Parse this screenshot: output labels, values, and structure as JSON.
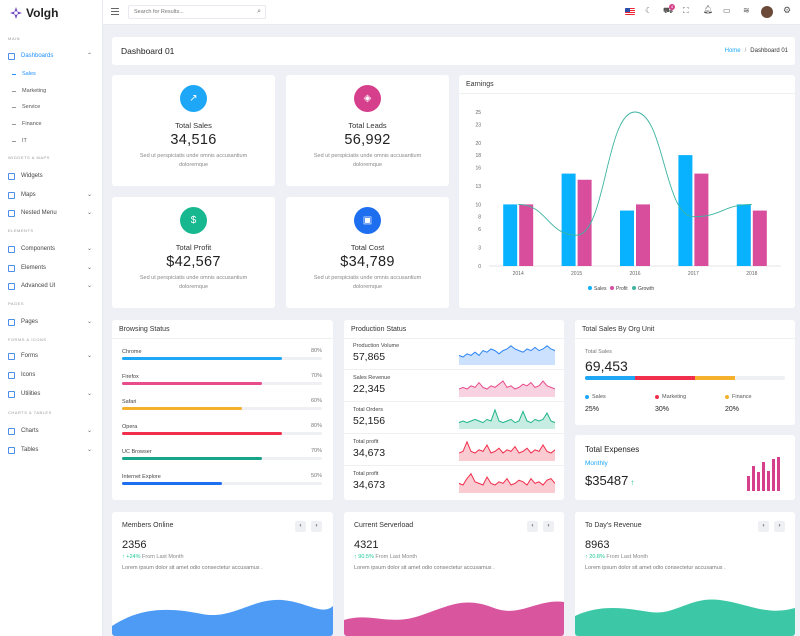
{
  "app": {
    "name": "Volgh"
  },
  "search": {
    "placeholder": "Search for Results..."
  },
  "notification_count": "4",
  "sidebar": {
    "sections": [
      "MAIN",
      "WIDGETS & MAPS",
      "ELEMENTS",
      "PAGES",
      "FORMS & ICONS",
      "CHARTS & TABLES"
    ],
    "dashboards": "Dashboards",
    "dashboard_subs": [
      "Sales",
      "Marketing",
      "Service",
      "Finance",
      "IT"
    ],
    "widgets": "Widgets",
    "maps": "Maps",
    "nested_menu": "Nested Menu",
    "components": "Components",
    "elements": "Elements",
    "advanced_ui": "Advanced UI",
    "pages": "Pages",
    "forms": "Forms",
    "icons": "Icons",
    "utilities": "Utilities",
    "charts": "Charts",
    "tables": "Tables"
  },
  "page": {
    "title": "Dashboard 01",
    "breadcrumb_home": "Home",
    "breadcrumb_sep": "/",
    "breadcrumb_current": "Dashboard 01"
  },
  "stats": [
    {
      "label": "Total Sales",
      "value": "34,516",
      "desc": "Sed ut perspiciatis unde omnis accusantium doloremque",
      "color": "#1ea7f7",
      "icon": "trending-up-icon"
    },
    {
      "label": "Total Leads",
      "value": "56,992",
      "desc": "Sed ut perspiciatis unde omnis accusantium doloremque",
      "color": "#d63f8c",
      "icon": "leads-icon"
    },
    {
      "label": "Total Profit",
      "value": "$42,567",
      "desc": "Sed ut perspiciatis unde omnis accusantium doloremque",
      "color": "#17b890",
      "icon": "dollar-icon"
    },
    {
      "label": "Total Cost",
      "value": "$34,789",
      "desc": "Sed ut perspiciatis unde omnis accusantium doloremque",
      "color": "#1e6ff0",
      "icon": "briefcase-icon"
    }
  ],
  "earnings": {
    "title": "Earnings"
  },
  "chart_data": {
    "type": "bar",
    "title": "Earnings",
    "categories": [
      "2014",
      "2015",
      "2016",
      "2017",
      "2018"
    ],
    "ylim": [
      0,
      25
    ],
    "yticks": [
      0,
      3,
      6,
      8,
      10,
      13,
      16,
      18,
      20,
      23,
      25
    ],
    "series": [
      {
        "name": "Sales",
        "type": "bar",
        "color": "#09b2ff",
        "values": [
          10,
          15,
          9,
          18,
          10
        ]
      },
      {
        "name": "Profit",
        "type": "bar",
        "color": "#d94e9c",
        "values": [
          10,
          14,
          10,
          15,
          9
        ]
      },
      {
        "name": "Growth",
        "type": "line",
        "color": "#3bb4a0",
        "values": [
          10,
          5,
          25,
          8,
          10
        ]
      }
    ],
    "legend": "bottom"
  },
  "browsing": {
    "title": "Browsing Status",
    "items": [
      {
        "name": "Chrome",
        "pct": "80%",
        "value": 0.8,
        "color": "#1ea7f7"
      },
      {
        "name": "Firefox",
        "pct": "70%",
        "value": 0.7,
        "color": "#e84c8b"
      },
      {
        "name": "Safari",
        "pct": "60%",
        "value": 0.6,
        "color": "#f5b12e"
      },
      {
        "name": "Opera",
        "pct": "80%",
        "value": 0.8,
        "color": "#f12f4c"
      },
      {
        "name": "UC Browser",
        "pct": "70%",
        "value": 0.7,
        "color": "#17a589"
      },
      {
        "name": "Internet Explore",
        "pct": "50%",
        "value": 0.5,
        "color": "#1e6ff0"
      }
    ]
  },
  "production": {
    "title": "Production Status",
    "items": [
      {
        "name": "Production Volume",
        "value": "57,865",
        "color": "#2f86f6"
      },
      {
        "name": "Sales Revenue",
        "value": "22,345",
        "color": "#e84c8b"
      },
      {
        "name": "Total Orders",
        "value": "52,156",
        "color": "#20b48a"
      },
      {
        "name": "Total profit",
        "value": "34,673",
        "color": "#f12f4c"
      },
      {
        "name": "Total profit",
        "value": "34,673",
        "color": "#f12f4c"
      }
    ]
  },
  "org": {
    "title": "Total Sales By Org Unit",
    "sub": "Total Sales",
    "value": "69,453",
    "segments": [
      {
        "name": "Sales",
        "pct": "25%",
        "value": 0.25,
        "color": "#1ea7f7"
      },
      {
        "name": "Marketing",
        "pct": "30%",
        "value": 0.3,
        "color": "#f12f4c"
      },
      {
        "name": "Finance",
        "pct": "20%",
        "value": 0.2,
        "color": "#f5b12e"
      }
    ]
  },
  "expenses": {
    "title": "Total Expenses",
    "period": "Monthly",
    "value": "$35487",
    "color": "#d63f8c",
    "bars": [
      0.45,
      0.75,
      0.55,
      0.85,
      0.6,
      0.95,
      1.0
    ]
  },
  "members": [
    {
      "title": "Members Online",
      "value": "2356",
      "trend": "+24%",
      "trend_text": "From Last Month",
      "desc": "Lorem ipsum dolor sit amet odio consectetur accusamus .",
      "color": "#4d9bf5"
    },
    {
      "title": "Current Serverload",
      "value": "4321",
      "trend": "90.5%",
      "trend_text": "From Last Month",
      "desc": "Lorem ipsum dolor sit amet odio consectetur accusamus .",
      "color": "#d9569f"
    },
    {
      "title": "To Day's Revenue",
      "value": "8963",
      "trend": "20.8%",
      "trend_text": "From Last Month",
      "desc": "Lorem ipsum dolor sit amet odio consectetur accusamus .",
      "color": "#3cc8a6"
    }
  ]
}
